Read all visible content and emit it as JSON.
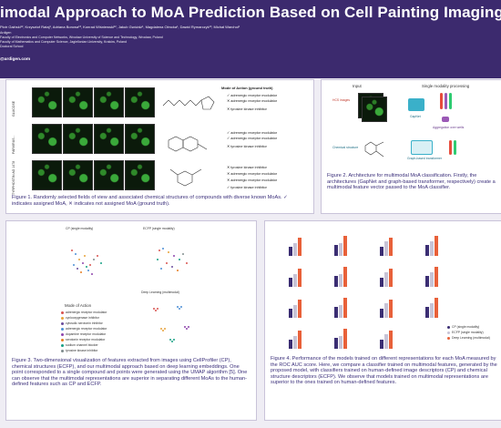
{
  "header": {
    "title": "imodal Approach to MoA Prediction Based on Cell Painting Imaging and",
    "authors": "Piotr Gaiński¹², Krzysztof Rataj¹, Adriana Borowa¹³, Konrad Wiśniewski¹², Jakub Gwóźdź¹, Magdalena Olmcka¹, Dawid Rymarczyk¹³, Michał Warchoł¹",
    "affiliations": [
      "Ardigen",
      "Faculty of Electronics and Computer Networks, Wrocław University of Science and Technology, Wrocław, Poland",
      "Faculty of Mathematics and Computer Science, Jagiellonian University, Kraków, Poland",
      "Doctoral School"
    ],
    "email": "@ardigen.com"
  },
  "fig1": {
    "row_labels": [
      "GLUCOSE",
      "PARVIRUS...",
      "TYRPHOSTIN AG 1478"
    ],
    "moa_head": "Mode of Action (ground truth)",
    "moa_groups": [
      [
        "✓ adrenergic receptor modulator",
        "✕ adrenergic receptor modulator",
        "✕ tyrosine kinase inhibitor"
      ],
      [
        "✓ adrenergic receptor modulator",
        "✓ adrenergic receptor modulator",
        "✕ tyrosine kinase inhibitor"
      ],
      [
        "✕ tyrosine kinase inhibitor",
        "✕ adrenergic receptor modulator",
        "✕ adrenergic receptor modulator",
        "✓ tyrosine kinase inhibitor"
      ]
    ],
    "caption": "Figure 1. Randomly selected fields of view and associated chemical structures of compounds with diverse known MoAs. ✓ indicates assigned MoA, ✕ indicates not assigned MoA (ground truth)."
  },
  "fig2": {
    "input_label": "Input",
    "single_label": "Single modality processing",
    "hcs_label": "HCS images",
    "chem_label": "Chemical structure",
    "gapnet_label": "GapNet",
    "agg_label": "Aggregation over wells",
    "graph_label": "Graph-based transformer",
    "caption": "Figure 2. Architecture for multimodal MoA classification. Firstly, the architectures (GapNet and graph-based transformer, respectively) create a multimodal feature vector passed to the MoA classifier."
  },
  "fig3": {
    "cp_label": "CP (single modality)",
    "ecfp_label": "ECFP (single modality)",
    "dl_label": "Deep Learning (multimodal)",
    "legend_title": "Mode of Action",
    "legend": [
      {
        "label": "adrenergic receptor modulator",
        "color": "#d9534f"
      },
      {
        "label": "cyclooxygenase inhibitor",
        "color": "#e8a33a"
      },
      {
        "label": "cytosolic serotonin inhibitor",
        "color": "#6a4c9c"
      },
      {
        "label": "adrenergic receptor modulator",
        "color": "#4c8fd6"
      },
      {
        "label": "dopamine receptor modulator",
        "color": "#8e44ad"
      },
      {
        "label": "serotonin receptor modulator",
        "color": "#e67e22"
      },
      {
        "label": "sodium channel blocker",
        "color": "#16a085"
      },
      {
        "label": "tyrosine kinase inhibitor",
        "color": "#7f8c8d"
      }
    ],
    "caption": "Figure 3. Two-dimensional visualization of features extracted from images using CellProfiler (CP), chemical structures (ECFP), and our multimodal approach based on deep learning embeddings. One point corresponded to a single compound and points were generated using the UMAP algorithm [5]. One can observe that the multimodal representations are superior in separating different MoAs to the human-defined features such as CP and ECFP."
  },
  "fig4": {
    "groups": [
      "glucocorticoid receptor agonist",
      "histamine receptor antagonist",
      "acetylcholine receptor antagonist",
      "adrenergic receptor agonist",
      "calcium channel blocker",
      "cyclooxygenase inhibitor",
      "dopamine receptor antagonist",
      "estrogen receptor agonist",
      "glutamate receptor antagonist",
      "HDAC inhibitor",
      "PPAR receptor agonist",
      "phosphodiesterase inhibitor",
      "serotonin receptor antagonist",
      "sodium channel blocker",
      "tubulin polymerization inhibitor",
      "tyrosine kinase inhibitor"
    ],
    "legend": [
      {
        "label": "CP (single modality)",
        "color": "#3b2e73"
      },
      {
        "label": "ECFP (single modality)",
        "color": "#c7c3d6"
      },
      {
        "label": "Deep Learning (multimodal)",
        "color": "#e8613a"
      }
    ],
    "caption": "Figure 4. Performance of the models trained on different representations for each MoA measured by the ROC AUC score. Here, we compare a classifier trained on multimodal features, generated by the proposed model, with classifiers trained on human-defined image descriptors (CP) and chemical structure descriptors (ECFP). We observe that models trained on multimodal representations are superior to the ones trained on human-defined features."
  }
}
